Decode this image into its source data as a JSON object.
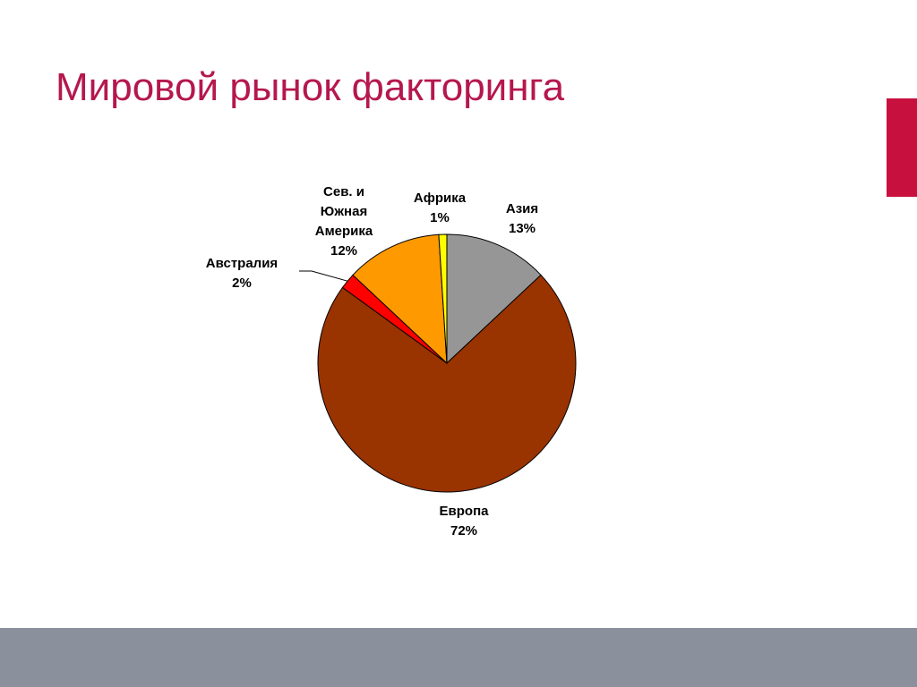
{
  "slide": {
    "title": "Мировой рынок факторинга",
    "colors": {
      "title": "#b5174e",
      "accent_bar": "#c8103f",
      "footer": "#8a909c"
    }
  },
  "chart_data": {
    "type": "pie",
    "title": "",
    "categories": [
      "Азия",
      "Европа",
      "Австралия",
      "Сев. и Южная Америка",
      "Африка"
    ],
    "values": [
      13,
      72,
      2,
      12,
      1
    ],
    "labels": [
      [
        "Азия",
        "13%"
      ],
      [
        "Европа",
        "72%"
      ],
      [
        "Австралия",
        "2%"
      ],
      [
        "Сев. и",
        "Южная",
        "Америка",
        "12%"
      ],
      [
        "Африка",
        "1%"
      ]
    ],
    "colors": [
      "#969696",
      "#993300",
      "#ff0000",
      "#ff9900",
      "#ffff00"
    ],
    "legend": "none"
  }
}
